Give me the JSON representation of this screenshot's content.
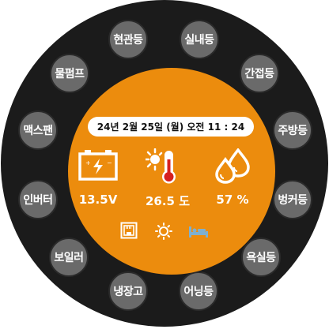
{
  "colors": {
    "background": "#ffffff",
    "ring": "#1b1b1b",
    "button": "#6a6a6a",
    "center": "#ec8c0d",
    "thermo_red": "#d62020",
    "white": "#ffffff"
  },
  "buttons": [
    {
      "name": "button-hyeongwandeung",
      "label": "현관등"
    },
    {
      "name": "button-silnaedeung",
      "label": "실내등"
    },
    {
      "name": "button-ganjeopdeung",
      "label": "간접등"
    },
    {
      "name": "button-jubangdeung",
      "label": "주방등"
    },
    {
      "name": "button-beongkeodeung",
      "label": "벙커등"
    },
    {
      "name": "button-yoksildeung",
      "label": "욕실등"
    },
    {
      "name": "button-eoningdeung",
      "label": "어닝등"
    },
    {
      "name": "button-naengjanggo",
      "label": "냉장고"
    },
    {
      "name": "button-boileo",
      "label": "보일러"
    },
    {
      "name": "button-inverter",
      "label": "인버터"
    },
    {
      "name": "button-maxfan",
      "label": "맥스팬"
    },
    {
      "name": "button-mulpump",
      "label": "물펌프"
    }
  ],
  "status": {
    "datetime": "24년 2월 25일 (월) 오전 11 : 24",
    "battery_voltage": "13.5V",
    "temperature": "26.5 도",
    "humidity": "57 %"
  },
  "icons": {
    "battery": "battery-icon",
    "thermometer": "thermometer-sun-icon",
    "humidity": "water-drops-icon",
    "ethernet": "ethernet-port-icon",
    "sun": "sun-icon",
    "bed": "bed-icon"
  }
}
